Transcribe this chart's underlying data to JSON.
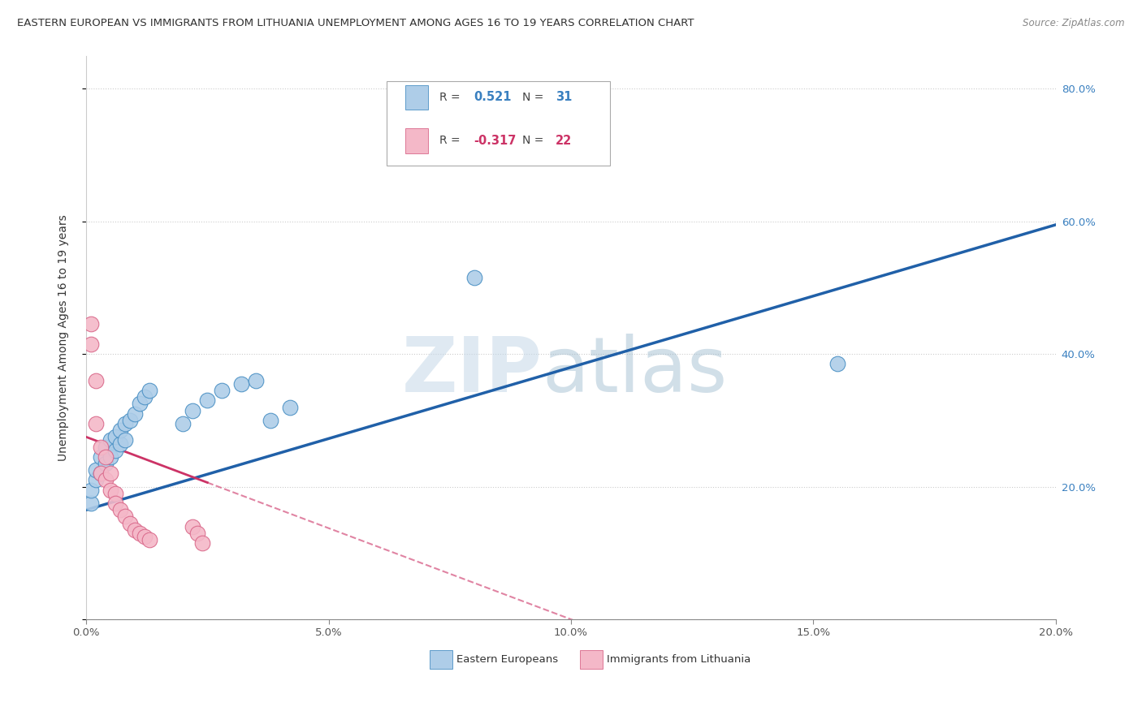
{
  "title": "EASTERN EUROPEAN VS IMMIGRANTS FROM LITHUANIA UNEMPLOYMENT AMONG AGES 16 TO 19 YEARS CORRELATION CHART",
  "source": "Source: ZipAtlas.com",
  "ylabel": "Unemployment Among Ages 16 to 19 years",
  "xlim": [
    0.0,
    0.2
  ],
  "ylim": [
    0.0,
    0.85
  ],
  "xticks": [
    0.0,
    0.05,
    0.1,
    0.15,
    0.2
  ],
  "xtick_labels": [
    "0.0%",
    "5.0%",
    "10.0%",
    "15.0%",
    "20.0%"
  ],
  "yticks": [
    0.0,
    0.2,
    0.4,
    0.6,
    0.8
  ],
  "ytick_labels": [
    "",
    "20.0%",
    "40.0%",
    "60.0%",
    "80.0%"
  ],
  "legend_bottom_label1": "Eastern Europeans",
  "legend_bottom_label2": "Immigrants from Lithuania",
  "R_eastern": 0.521,
  "N_eastern": 31,
  "R_lithuania": -0.317,
  "N_lithuania": 22,
  "blue_fill": "#aecde8",
  "blue_edge": "#4a90c4",
  "pink_fill": "#f4b8c8",
  "pink_edge": "#d9688a",
  "blue_line_color": "#2060a8",
  "pink_line_color": "#cc3366",
  "grid_color": "#cccccc",
  "eastern_x": [
    0.001,
    0.001,
    0.002,
    0.002,
    0.003,
    0.003,
    0.004,
    0.004,
    0.005,
    0.005,
    0.006,
    0.006,
    0.007,
    0.007,
    0.008,
    0.008,
    0.009,
    0.01,
    0.011,
    0.012,
    0.013,
    0.02,
    0.022,
    0.025,
    0.028,
    0.032,
    0.035,
    0.038,
    0.042,
    0.08,
    0.155
  ],
  "eastern_y": [
    0.175,
    0.195,
    0.21,
    0.225,
    0.22,
    0.245,
    0.235,
    0.26,
    0.245,
    0.27,
    0.255,
    0.275,
    0.265,
    0.285,
    0.27,
    0.295,
    0.3,
    0.31,
    0.325,
    0.335,
    0.345,
    0.295,
    0.315,
    0.33,
    0.345,
    0.355,
    0.36,
    0.3,
    0.32,
    0.515,
    0.385
  ],
  "lithuania_x": [
    0.001,
    0.001,
    0.002,
    0.002,
    0.003,
    0.003,
    0.004,
    0.004,
    0.005,
    0.005,
    0.006,
    0.006,
    0.007,
    0.008,
    0.009,
    0.01,
    0.011,
    0.012,
    0.013,
    0.022,
    0.023,
    0.024
  ],
  "lithuania_y": [
    0.445,
    0.415,
    0.36,
    0.295,
    0.26,
    0.22,
    0.245,
    0.21,
    0.22,
    0.195,
    0.19,
    0.175,
    0.165,
    0.155,
    0.145,
    0.135,
    0.13,
    0.125,
    0.12,
    0.14,
    0.13,
    0.115
  ],
  "blue_line_x0": 0.0,
  "blue_line_y0": 0.165,
  "blue_line_x1": 0.2,
  "blue_line_y1": 0.595,
  "pink_line_x0": 0.0,
  "pink_line_y0": 0.275,
  "pink_line_x1": 0.1,
  "pink_line_y1": 0.0,
  "watermark_zip_color": "#c5d8e8",
  "watermark_atlas_color": "#9ab8cc"
}
